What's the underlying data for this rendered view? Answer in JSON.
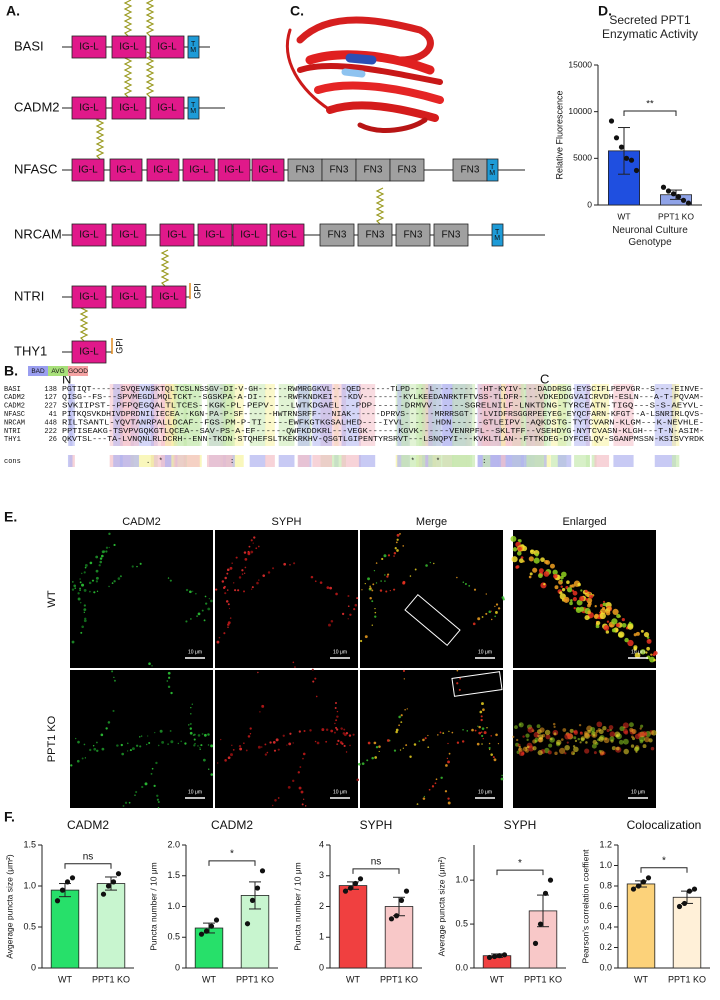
{
  "figure": {
    "panel_labels": [
      "A.",
      "B.",
      "C.",
      "D.",
      "E.",
      "F."
    ],
    "panel_a": {
      "proteins": [
        {
          "name": "BASI",
          "domains": [
            "IG-L",
            "IG-L",
            "IG-L",
            "TM"
          ]
        },
        {
          "name": "CADM2",
          "domains": [
            "IG-L",
            "IG-L",
            "IG-L",
            "TM"
          ]
        },
        {
          "name": "NFASC",
          "domains": [
            "IG-L",
            "IG-L",
            "IG-L",
            "IG-L",
            "IG-L",
            "IG-L",
            "FN3",
            "FN3",
            "FN3",
            "FN3",
            "FN3",
            "TM"
          ]
        },
        {
          "name": "NRCAM",
          "domains": [
            "IG-L",
            "IG-L",
            "IG-L",
            "IG-L",
            "IG-L",
            "IG-L",
            "FN3",
            "FN3",
            "FN3",
            "FN3",
            "TM"
          ]
        },
        {
          "name": "NTRI",
          "domains": [
            "IG-L",
            "IG-L",
            "IG-L",
            "GPI"
          ]
        },
        {
          "name": "THY1",
          "domains": [
            "IG-L",
            "GPI"
          ]
        }
      ],
      "n_label": "N",
      "c_label": "C"
    },
    "panel_b": {
      "legend": [
        "BAD",
        "AVG",
        "GOOD"
      ],
      "rows": [
        {
          "name": "BASI",
          "start": 138,
          "seq": "PGTIQT------SVQEVNSKTQLTCSLNSSGV-DI-V-GH------RWMRGGKVL---QED------TLPD----L----------HT-KYIV----DADDRSG-EYSCIFLPEPVGR--S----EINVE-"
        },
        {
          "name": "CADM2",
          "start": 127,
          "seq": "QISG--FS---SPVMEGDLMQLTCKT--SGSKPA-A-DI------RWFKNDKEI---KDV--------KYLKEEDANRKTFTVSS-TLDFR----VDKEDDGVAICRVDH-ESLN---A-T-PQVAM-"
        },
        {
          "name": "CADM2",
          "start": 227,
          "seq": "SVKIIPST--PFPQEGQALTLTCES--KGK-PL-PEPV----LWTKDGAEL---PDP------DRMVV------SGRELNILF-LNKTDNG-TYRCEATN-TIGQ---S-S-AEYVL-"
        },
        {
          "name": "NFASC",
          "start": 41,
          "seq": "PITKQSVKDHIVDPRDNILIECEA--KGN-PA-P-SF------HWTRNSRFF---NIAK------DPRVS------MRRRSGT---LVIDFRSGGRPEEYEG-EYQCFARN-KFGT--A-LSNRIRLQVS-"
        },
        {
          "name": "NRCAM",
          "start": 448,
          "seq": "RILTSANTL-YQVTANRPALLDCAF--FGS-PM-P-TI-----EWFKGTKGSALHED----IYVL------HDN------GTLEIPV--AQKDSTG-TYTCVARN-KLGM---K-NEVHLE-"
        },
        {
          "name": "NTRI",
          "start": 222,
          "seq": "PPTISEAKG-TSVPVGQKGTLQCEA--SAV-PS-A-EF------QWFKDDKRL---VEGK------KGVK------VENRPFL--SKLTFF--VSEHDYG-NYTCVASN-KLGH---T-N-ASIM-"
        },
        {
          "name": "THY1",
          "start": 26,
          "seq": "QKVTSL---TA-LVNQNLRLDCRH--ENN-TKDN-STQHEFSLTKEKRKHV-QSGTLGIPENTYRSRVT---LSNQPYI---KVKLTLAN--FTTKDEG-DYFCELQV-SGANPMSSN-KSISVYRDK"
        }
      ],
      "cons_label": "cons",
      "cons": "                    .  *                :                                          *     *          :           "
    },
    "panel_e": {
      "columns": [
        "CADM2",
        "SYPH",
        "Merge",
        "Enlarged"
      ],
      "rows": [
        "WT",
        "PPT1 KO"
      ],
      "scale_bar": "10 μm"
    }
  },
  "chart_data": [
    {
      "type": "bar",
      "title": "Secreted PPT1 Enzymatic Activity",
      "ylabel": "Relative Fluorescence",
      "xlabel": "Neuronal Culture Genotype",
      "categories": [
        "WT",
        "PPT1 KO"
      ],
      "values": [
        5800,
        1100
      ],
      "errors": [
        2500,
        500
      ],
      "colors": [
        "#1f4fe0",
        "#8fa3e8"
      ],
      "points": [
        [
          9000,
          7200,
          6200,
          5000,
          4800,
          3700
        ],
        [
          1900,
          1500,
          1200,
          900,
          500,
          200
        ]
      ],
      "significance": "**",
      "ylim": [
        0,
        15000
      ],
      "yticks": [
        0,
        5000,
        10000,
        15000
      ]
    },
    {
      "type": "bar",
      "title": "CADM2",
      "ylabel": "Avgerage puncta size (μm²)",
      "categories": [
        "WT",
        "PPT1 KO"
      ],
      "values": [
        0.95,
        1.03
      ],
      "errors": [
        0.08,
        0.08
      ],
      "colors": [
        "#27e06a",
        "#c8f5cf"
      ],
      "points": [
        [
          0.82,
          0.95,
          1.05,
          1.1
        ],
        [
          0.9,
          1.0,
          1.05,
          1.15
        ]
      ],
      "significance": "ns",
      "ylim": [
        0,
        1.5
      ],
      "yticks": [
        0,
        0.5,
        {
          "value": 1,
          "label": "1.0"
        },
        1.5
      ]
    },
    {
      "type": "bar",
      "title": "CADM2",
      "ylabel": "Puncta number / 10 μm",
      "categories": [
        "WT",
        "PPT1 KO"
      ],
      "values": [
        0.65,
        1.18
      ],
      "errors": [
        0.08,
        0.22
      ],
      "colors": [
        "#27e06a",
        "#c8f5cf"
      ],
      "points": [
        [
          0.55,
          0.6,
          0.68,
          0.78
        ],
        [
          0.72,
          1.1,
          1.3,
          1.58
        ]
      ],
      "significance": "*",
      "ylim": [
        0,
        2
      ],
      "yticks": [
        0,
        0.5,
        {
          "value": 1,
          "label": "1.0"
        },
        1.5,
        {
          "value": 2,
          "label": "2.0"
        }
      ]
    },
    {
      "type": "bar",
      "title": "SYPH",
      "ylabel": "Puncta number / 10 μm",
      "categories": [
        "WT",
        "PPT1 KO"
      ],
      "values": [
        2.68,
        2.0
      ],
      "errors": [
        0.12,
        0.3
      ],
      "colors": [
        "#f04040",
        "#f8c8c8"
      ],
      "points": [
        [
          2.5,
          2.6,
          2.75,
          2.9
        ],
        [
          1.6,
          1.7,
          2.2,
          2.5
        ]
      ],
      "significance": "ns",
      "ylim": [
        0,
        4
      ],
      "yticks": [
        0,
        1,
        2,
        3,
        4
      ]
    },
    {
      "type": "bar",
      "title": "SYPH",
      "ylabel": "Average puncta size (μm²)",
      "categories": [
        "WT",
        "PPT1 KO"
      ],
      "values": [
        0.14,
        0.65
      ],
      "errors": [
        0.02,
        0.18
      ],
      "colors": [
        "#f04040",
        "#f8c8c8"
      ],
      "points": [
        [
          0.12,
          0.13,
          0.14,
          0.15
        ],
        [
          0.28,
          0.5,
          0.85,
          1.0
        ]
      ],
      "significance": "*",
      "ylim": [
        0,
        1.4
      ],
      "yticks": [
        {
          "value": 0,
          "label": "0.0"
        },
        0.5,
        {
          "value": 1,
          "label": "1.0"
        }
      ]
    },
    {
      "type": "bar",
      "title": "Colocalization",
      "ylabel": "Pearson's correlation coeffient",
      "categories": [
        "WT",
        "PPT1 KO"
      ],
      "values": [
        0.82,
        0.69
      ],
      "errors": [
        0.03,
        0.06
      ],
      "colors": [
        "#fcd27a",
        "#fff0d8"
      ],
      "points": [
        [
          0.77,
          0.8,
          0.84,
          0.88
        ],
        [
          0.6,
          0.63,
          0.75,
          0.77
        ]
      ],
      "significance": "*",
      "ylim": [
        0,
        1.2
      ],
      "yticks": [
        {
          "value": 0,
          "label": "0.0"
        },
        0.2,
        0.4,
        0.6,
        0.8,
        {
          "value": 1,
          "label": "1.0"
        },
        1.2
      ]
    }
  ]
}
